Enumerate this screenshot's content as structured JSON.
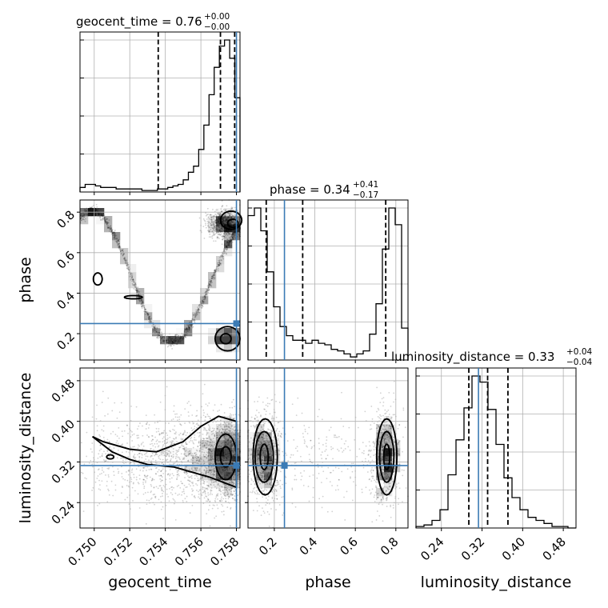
{
  "chart_data": {
    "type": "corner",
    "parameters": [
      "geocent_time",
      "phase",
      "luminosity_distance"
    ],
    "axis_labels": [
      "geocent_time",
      "phase",
      "luminosity_distance"
    ],
    "titles": [
      {
        "param": "geocent_time",
        "label": "geocent_time = 0.76",
        "plus": "+0.00",
        "minus": "−0.00"
      },
      {
        "param": "phase",
        "label": "phase = 0.34",
        "plus": "+0.41",
        "minus": "−0.17"
      },
      {
        "param": "luminosity_distance",
        "label": "luminosity_distance = 0.33",
        "plus": "+0.04",
        "minus": "−0.04"
      }
    ],
    "ranges": {
      "geocent_time": [
        0.7492,
        0.7582
      ],
      "phase": [
        0.07,
        0.86
      ],
      "luminosity_distance": [
        0.19,
        0.505
      ]
    },
    "ticks": {
      "geocent_time": [
        0.75,
        0.752,
        0.754,
        0.756,
        0.758
      ],
      "phase": [
        0.2,
        0.4,
        0.6,
        0.8
      ],
      "luminosity_distance": [
        0.24,
        0.32,
        0.4,
        0.48
      ]
    },
    "tick_labels": {
      "geocent_time": [
        "0.750",
        "0.752",
        "0.754",
        "0.756",
        "0.758"
      ],
      "phase": [
        "0.2",
        "0.4",
        "0.6",
        "0.8"
      ],
      "luminosity_distance": [
        "0.24",
        "0.32",
        "0.40",
        "0.48"
      ]
    },
    "truths": {
      "geocent_time": 0.758,
      "phase": 0.25,
      "luminosity_distance": 0.313
    },
    "quantiles": {
      "geocent_time": [
        0.7536,
        0.7571,
        0.7579
      ],
      "phase": [
        0.16,
        0.34,
        0.75
      ],
      "luminosity_distance": [
        0.294,
        0.331,
        0.371
      ]
    },
    "histograms": {
      "geocent_time": [
        3,
        5,
        5,
        4,
        3,
        3,
        3,
        2,
        2,
        2,
        2,
        2,
        1,
        1,
        1,
        2,
        2,
        3,
        4,
        5,
        8,
        13,
        17,
        28,
        44,
        64,
        82,
        96,
        100,
        88,
        62
      ],
      "phase": [
        95,
        100,
        85,
        58,
        35,
        22,
        16,
        13,
        13,
        11,
        13,
        11,
        10,
        7,
        6,
        4,
        2,
        4,
        6,
        17,
        37,
        73,
        100,
        89,
        21
      ],
      "luminosity_distance": [
        1,
        2,
        5,
        12,
        35,
        58,
        79,
        100,
        96,
        78,
        55,
        33,
        20,
        12,
        7,
        5,
        3,
        1,
        1,
        0
      ]
    },
    "grid": true
  },
  "colors": {
    "truth": "#3b7bb5",
    "lines": "#000000",
    "grid": "#b0b0b0"
  }
}
